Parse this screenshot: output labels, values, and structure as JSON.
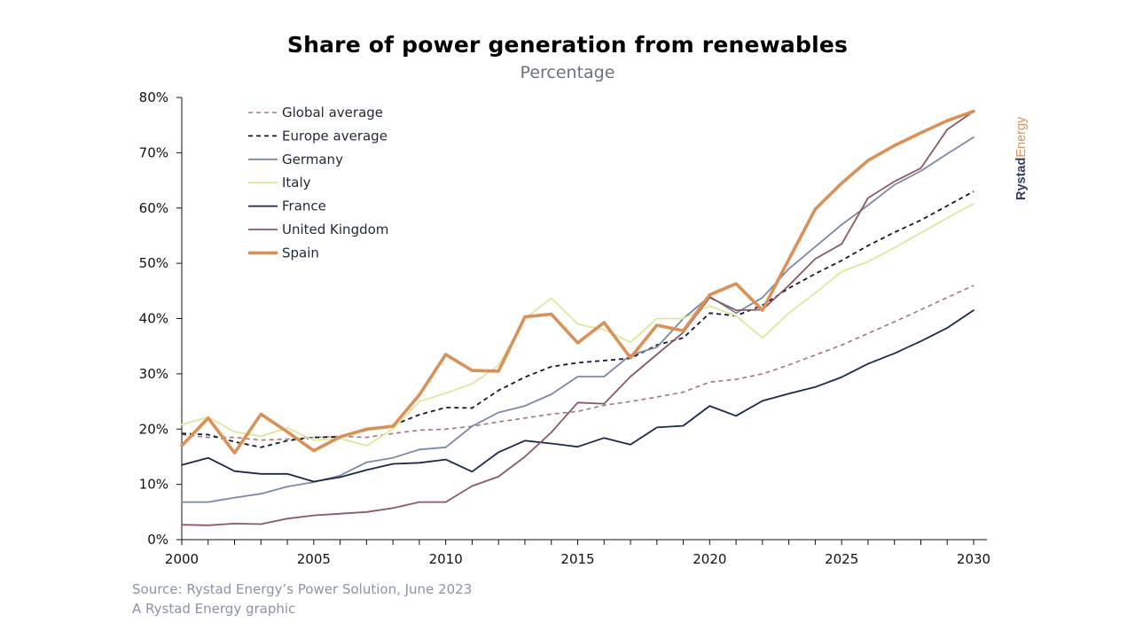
{
  "chart_data": {
    "type": "line",
    "title": "Share of power generation from renewables",
    "subtitle": "Percentage",
    "xlabel": "",
    "ylabel": "",
    "x": [
      2000,
      2001,
      2002,
      2003,
      2004,
      2005,
      2006,
      2007,
      2008,
      2009,
      2010,
      2011,
      2012,
      2013,
      2014,
      2015,
      2016,
      2017,
      2018,
      2019,
      2020,
      2021,
      2022,
      2023,
      2024,
      2025,
      2026,
      2027,
      2028,
      2029,
      2030
    ],
    "xlim": [
      2000,
      2030
    ],
    "ylim": [
      0,
      80
    ],
    "x_ticks": [
      "2000",
      "2005",
      "2010",
      "2015",
      "2020",
      "2025",
      "2030"
    ],
    "x_tick_values": [
      2000,
      2005,
      2010,
      2015,
      2020,
      2025,
      2030
    ],
    "y_ticks": [
      "0%",
      "10%",
      "20%",
      "30%",
      "40%",
      "50%",
      "60%",
      "70%",
      "80%"
    ],
    "y_tick_values": [
      0,
      10,
      20,
      30,
      40,
      50,
      60,
      70,
      80
    ],
    "grid": false,
    "legend_position": "top-left",
    "series": [
      {
        "name": "Global average",
        "color": "#a8737b",
        "style": "dashed",
        "width": 1.6,
        "values": [
          19,
          18.5,
          18.5,
          18,
          18.2,
          18.5,
          18.7,
          18.5,
          19.2,
          19.8,
          20,
          20.5,
          21.3,
          22,
          22.7,
          23.2,
          24.3,
          25,
          25.8,
          26.7,
          28.5,
          29,
          30,
          31.6,
          33.4,
          35.2,
          37.3,
          39.4,
          41.6,
          43.8,
          46
        ]
      },
      {
        "name": "Europe average",
        "color": "#111a33",
        "style": "dashed",
        "width": 1.8,
        "values": [
          19.2,
          19,
          17.7,
          16.7,
          17.9,
          18.5,
          18.6,
          19.8,
          20.7,
          22.6,
          23.9,
          23.8,
          27,
          29.4,
          31.3,
          32,
          32.4,
          32.8,
          35.2,
          36.5,
          41,
          40.5,
          42.4,
          45.5,
          48.1,
          50.5,
          53.2,
          55.6,
          57.8,
          60.4,
          63
        ]
      },
      {
        "name": "Germany",
        "color": "#7a8aa5",
        "style": "solid",
        "width": 1.8,
        "values": [
          6.8,
          6.8,
          7.6,
          8.3,
          9.6,
          10.4,
          11.6,
          14,
          14.8,
          16.3,
          16.7,
          20.5,
          23,
          24.2,
          26.3,
          29.5,
          29.5,
          33.4,
          34.8,
          40,
          44,
          41,
          43.8,
          49,
          53,
          57,
          60.5,
          64.2,
          66.7,
          69.8,
          72.8
        ]
      },
      {
        "name": "Italy",
        "color": "#dfe79c",
        "style": "solid",
        "width": 1.8,
        "values": [
          20.8,
          22.2,
          19.5,
          18.7,
          20.2,
          18,
          18.3,
          17,
          20,
          25,
          26.5,
          28.2,
          31.5,
          40,
          43.7,
          39,
          38,
          35.7,
          40,
          40,
          42.3,
          40.5,
          36.5,
          41,
          44.6,
          48.5,
          50.3,
          52.8,
          55.5,
          58.2,
          60.8
        ]
      },
      {
        "name": "France",
        "color": "#1b2a4a",
        "style": "solid",
        "width": 1.8,
        "values": [
          13.5,
          14.8,
          12.4,
          11.9,
          11.9,
          10.5,
          11.3,
          12.6,
          13.7,
          13.9,
          14.5,
          12.3,
          15.8,
          17.9,
          17.4,
          16.8,
          18.4,
          17.2,
          20.3,
          20.6,
          24.2,
          22.4,
          25.1,
          26.4,
          27.6,
          29.4,
          31.8,
          33.7,
          35.9,
          38.3,
          41.5
        ]
      },
      {
        "name": "United Kingdom",
        "color": "#8a5a60",
        "style": "solid",
        "width": 1.8,
        "values": [
          2.7,
          2.6,
          2.9,
          2.8,
          3.8,
          4.4,
          4.7,
          5,
          5.7,
          6.8,
          6.8,
          9.7,
          11.4,
          15,
          19.4,
          24.8,
          24.6,
          29.5,
          33.5,
          37.5,
          43.8,
          41.5,
          41.6,
          46,
          50.8,
          53.5,
          61.8,
          64.8,
          67.2,
          74.2,
          77.5
        ]
      },
      {
        "name": "Spain",
        "color": "#d99158",
        "style": "solid",
        "width": 3.6,
        "values": [
          17,
          22,
          15.7,
          22.7,
          19.5,
          16.1,
          18.6,
          20,
          20.5,
          26.2,
          33.5,
          30.6,
          30.5,
          40.3,
          40.8,
          35.6,
          39.3,
          32.9,
          38.8,
          37.8,
          44.3,
          46.3,
          41.5,
          50.7,
          59.8,
          64.5,
          68.6,
          71.3,
          73.6,
          75.8,
          77.5
        ]
      }
    ]
  },
  "footer": {
    "source": "Source: Rystad Energy’s Power Solution, June 2023",
    "credit": "A Rystad Energy graphic"
  },
  "brand": {
    "part1": "Rystad",
    "part2": "Energy",
    "color1": "#2d3e5e",
    "color2": "#e0915a"
  }
}
